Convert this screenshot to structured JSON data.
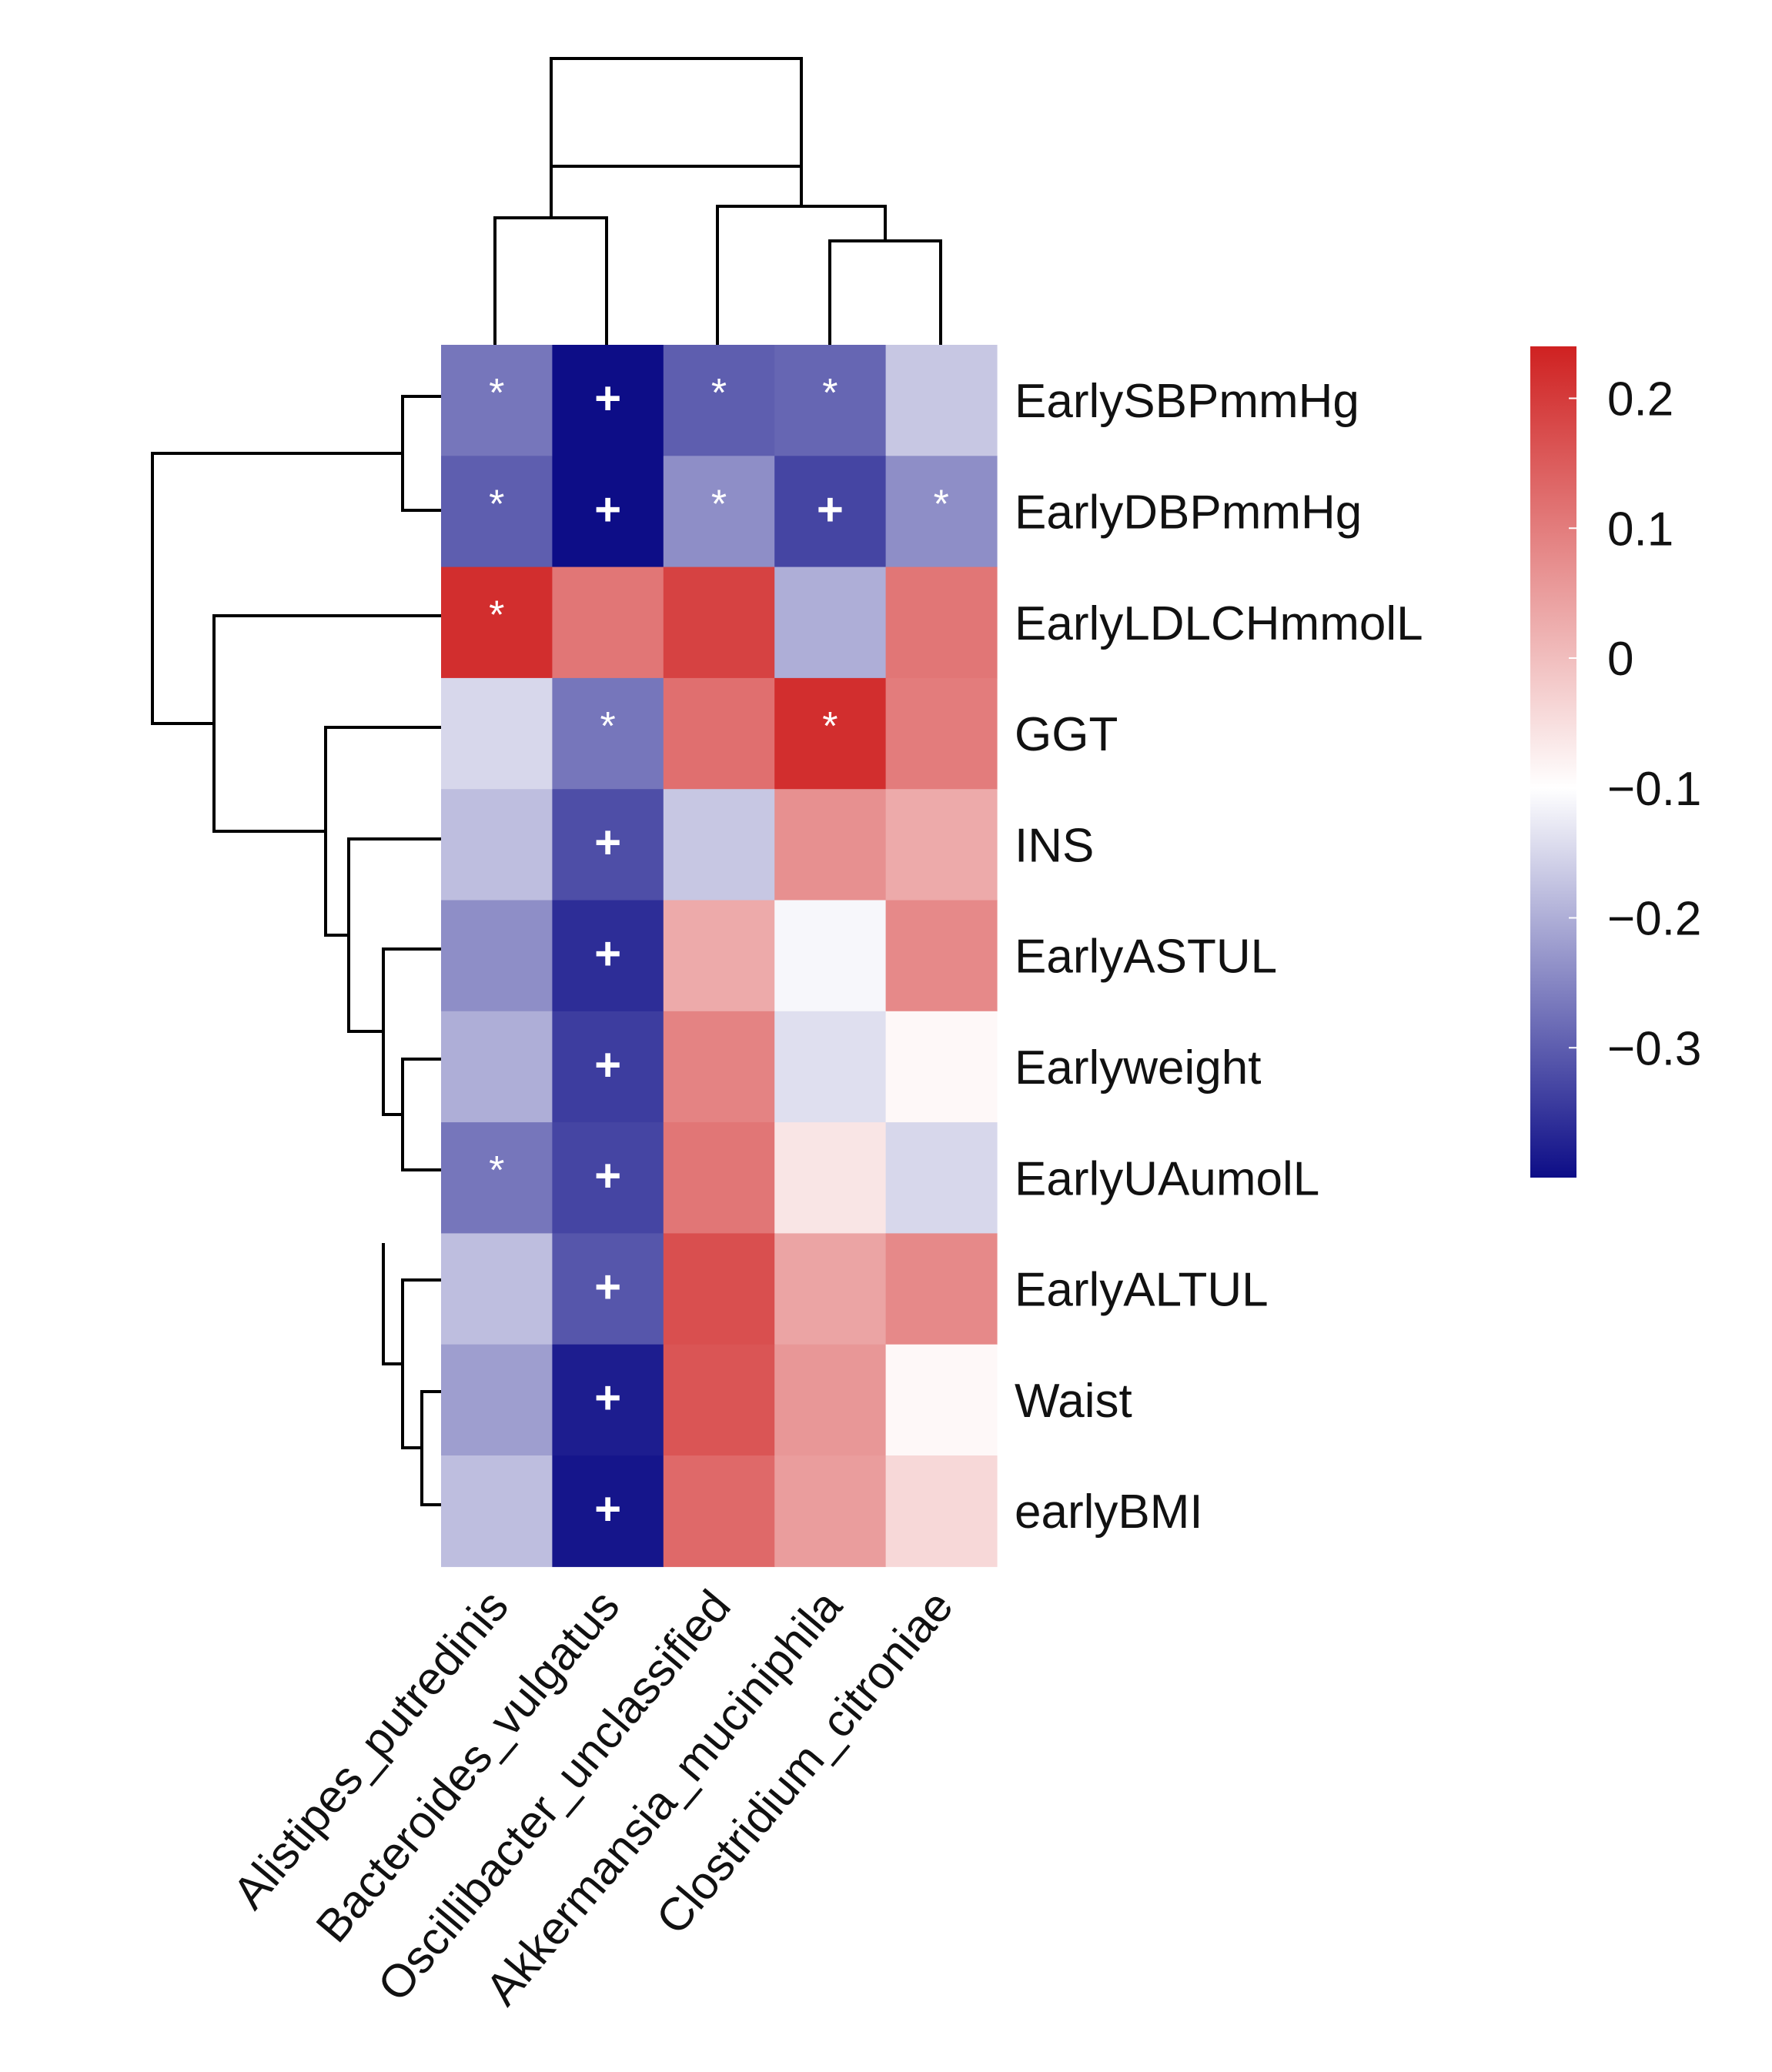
{
  "chart_data": {
    "type": "heatmap",
    "title": "",
    "columns": [
      "Alistipes_putredinis",
      "Bacteroides_vulgatus",
      "Oscillibacter_unclassified",
      "Akkermansia_muciniphila",
      "Clostridium_citroniae"
    ],
    "rows": [
      "EarlySBPmmHg",
      "EarlyDBPmmHg",
      "EarlyLDLCHmmolL",
      "GGT",
      "INS",
      "EarlyASTUL",
      "Earlyweight",
      "EarlyUAumolL",
      "EarlyALTUL",
      "Waist",
      "earlyBMI"
    ],
    "values": [
      [
        -0.27,
        -0.4,
        -0.3,
        -0.29,
        -0.17
      ],
      [
        -0.3,
        -0.4,
        -0.24,
        -0.33,
        -0.24
      ],
      [
        0.22,
        0.11,
        0.19,
        -0.2,
        0.11
      ],
      [
        -0.15,
        -0.27,
        0.12,
        0.22,
        0.1
      ],
      [
        -0.18,
        -0.32,
        -0.17,
        0.07,
        0.03
      ],
      [
        -0.24,
        -0.36,
        0.03,
        -0.11,
        0.08
      ],
      [
        -0.2,
        -0.34,
        0.09,
        -0.14,
        -0.09
      ],
      [
        -0.27,
        -0.33,
        0.11,
        -0.06,
        -0.15
      ],
      [
        -0.18,
        -0.31,
        0.17,
        0.04,
        0.08
      ],
      [
        -0.22,
        -0.38,
        0.16,
        0.06,
        -0.09
      ],
      [
        -0.18,
        -0.39,
        0.13,
        0.05,
        -0.04
      ]
    ],
    "significance": [
      [
        "*",
        "+",
        "*",
        "*",
        ""
      ],
      [
        "*",
        "+",
        "*",
        "+",
        "*"
      ],
      [
        "*",
        "",
        "",
        "",
        ""
      ],
      [
        "",
        "*",
        "",
        "*",
        ""
      ],
      [
        "",
        "+",
        "",
        "",
        ""
      ],
      [
        "",
        "+",
        "",
        "",
        ""
      ],
      [
        "",
        "+",
        "",
        "",
        ""
      ],
      [
        "*",
        "+",
        "",
        "",
        ""
      ],
      [
        "",
        "+",
        "",
        "",
        ""
      ],
      [
        "",
        "+",
        "",
        "",
        ""
      ],
      [
        "",
        "+",
        "",
        "",
        ""
      ]
    ],
    "color_scale": {
      "min": -0.4,
      "max": 0.24,
      "mid": -0.1,
      "low_color": "#0d0d87",
      "mid_color": "#ffffff",
      "high_color": "#cf2121",
      "ticks": [
        0.2,
        0.1,
        0,
        -0.1,
        -0.2,
        -0.3
      ],
      "tick_labels": [
        "0.2",
        "0.1",
        "0",
        "−0.1",
        "−0.2",
        "−0.3"
      ]
    },
    "legend_position": "right"
  }
}
